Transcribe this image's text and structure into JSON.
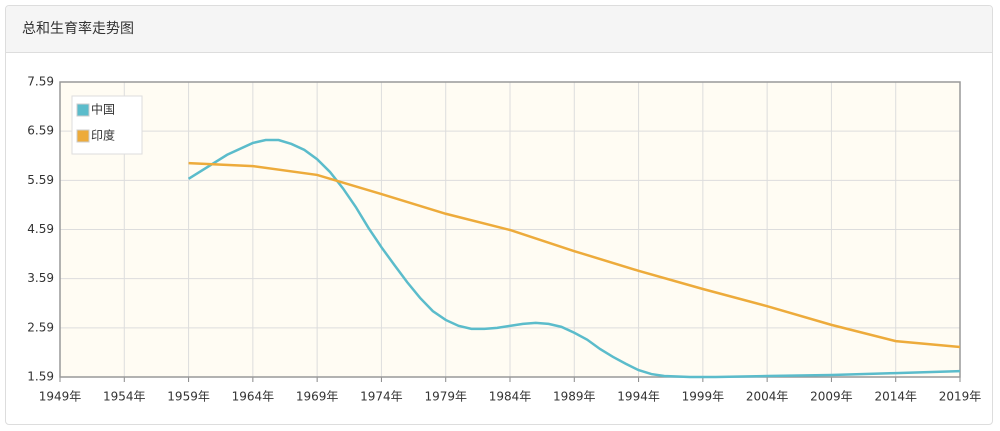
{
  "header": {
    "title": "总和生育率走势图"
  },
  "chart_data": {
    "type": "line",
    "series": [
      {
        "name": "中国",
        "color": "#5bbccb",
        "x": [
          1959,
          1962,
          1964,
          1965,
          1966,
          1967,
          1968,
          1969,
          1970,
          1971,
          1972,
          1973,
          1974,
          1975,
          1976,
          1977,
          1978,
          1979,
          1980,
          1981,
          1982,
          1983,
          1984,
          1985,
          1986,
          1987,
          1988,
          1989,
          1990,
          1991,
          1992,
          1993,
          1994,
          1995,
          1996,
          1998,
          2000,
          2004,
          2009,
          2014,
          2019
        ],
        "values": [
          5.62,
          6.11,
          6.35,
          6.41,
          6.41,
          6.33,
          6.21,
          6.02,
          5.76,
          5.43,
          5.05,
          4.62,
          4.23,
          3.87,
          3.52,
          3.2,
          2.93,
          2.75,
          2.63,
          2.57,
          2.57,
          2.59,
          2.63,
          2.67,
          2.69,
          2.67,
          2.61,
          2.49,
          2.35,
          2.16,
          2.0,
          1.86,
          1.73,
          1.65,
          1.61,
          1.59,
          1.59,
          1.61,
          1.63,
          1.67,
          1.71
        ]
      },
      {
        "name": "印度",
        "color": "#edab3b",
        "x": [
          1959,
          1964,
          1969,
          1974,
          1979,
          1984,
          1989,
          1994,
          1999,
          2004,
          2009,
          2014,
          2019
        ],
        "values": [
          5.94,
          5.88,
          5.7,
          5.31,
          4.91,
          4.58,
          4.15,
          3.75,
          3.38,
          3.03,
          2.65,
          2.32,
          2.2
        ]
      }
    ],
    "xlim": [
      1949,
      2019
    ],
    "xticks": [
      {
        "value": 1949,
        "label": "1949年"
      },
      {
        "value": 1954,
        "label": "1954年"
      },
      {
        "value": 1959,
        "label": "1959年"
      },
      {
        "value": 1964,
        "label": "1964年"
      },
      {
        "value": 1969,
        "label": "1969年"
      },
      {
        "value": 1974,
        "label": "1974年"
      },
      {
        "value": 1979,
        "label": "1979年"
      },
      {
        "value": 1984,
        "label": "1984年"
      },
      {
        "value": 1989,
        "label": "1989年"
      },
      {
        "value": 1994,
        "label": "1994年"
      },
      {
        "value": 1999,
        "label": "1999年"
      },
      {
        "value": 2004,
        "label": "2004年"
      },
      {
        "value": 2009,
        "label": "2009年"
      },
      {
        "value": 2014,
        "label": "2014年"
      },
      {
        "value": 2019,
        "label": "2019年"
      }
    ],
    "ylim": [
      1.59,
      7.59
    ],
    "yticks": [
      1.59,
      2.59,
      3.59,
      4.59,
      5.59,
      6.59,
      7.59
    ],
    "grid": true,
    "legend": "upper-left"
  }
}
